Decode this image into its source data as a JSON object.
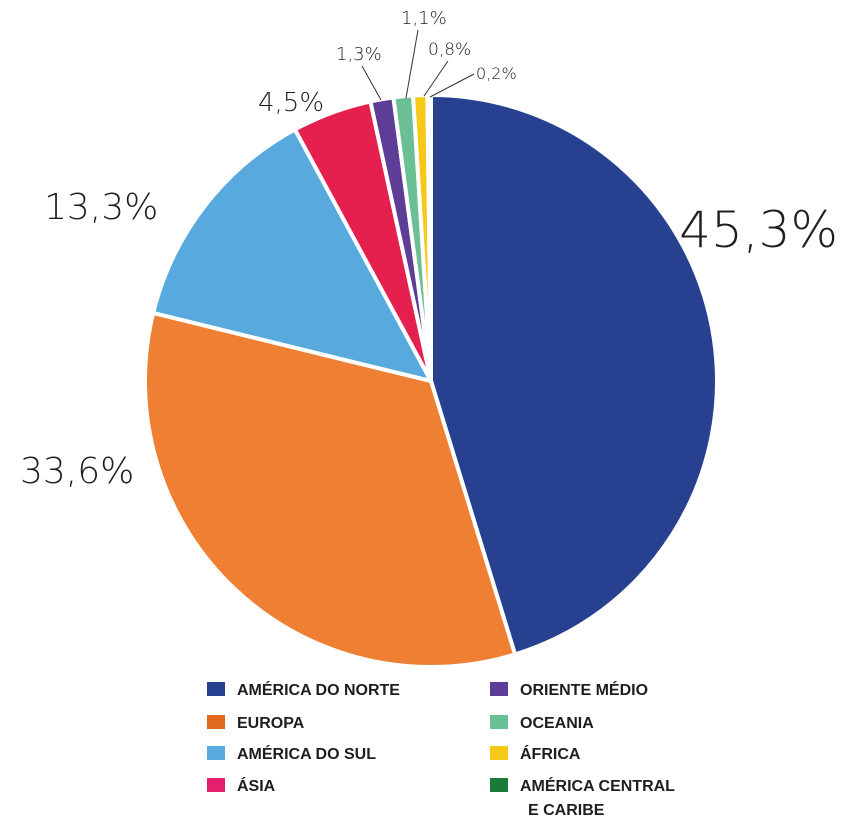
{
  "chart_data": {
    "type": "pie",
    "title": "",
    "slices": [
      {
        "label": "AMÉRICA DO NORTE",
        "value": 45.3,
        "display": "45,3%",
        "color": "#27408f"
      },
      {
        "label": "EUROPA",
        "value": 33.6,
        "display": "33,6%",
        "color": "#ee7f33"
      },
      {
        "label": "AMÉRICA DO SUL",
        "value": 13.3,
        "display": "13,3%",
        "color": "#58aade"
      },
      {
        "label": "ÁSIA",
        "value": 4.5,
        "display": "4,5%",
        "color": "#e51f4e"
      },
      {
        "label": "ORIENTE MÉDIO",
        "value": 1.3,
        "display": "1,3%",
        "color": "#5e3d96"
      },
      {
        "label": "OCEANIA",
        "value": 1.1,
        "display": "1,1%",
        "color": "#6abf95"
      },
      {
        "label": "ÁFRICA",
        "value": 0.8,
        "display": "0,8%",
        "color": "#f6c919"
      },
      {
        "label": "AMÉRICA CENTRAL E CARIBE",
        "value": 0.2,
        "display": "0,2%",
        "color": "#1b7a3a"
      }
    ],
    "legend": {
      "placement": "bottom",
      "columns": [
        [
          {
            "label": "AMÉRICA DO NORTE",
            "color": "#27408f"
          },
          {
            "label": "EUROPA",
            "color": "#e0681f"
          },
          {
            "label": "AMÉRICA DO SUL",
            "color": "#58aade"
          },
          {
            "label": "ÁSIA",
            "color": "#e51f6e"
          }
        ],
        [
          {
            "label": "ORIENTE MÉDIO",
            "color": "#5e3d96"
          },
          {
            "label": "OCEANIA",
            "color": "#6abf95"
          },
          {
            "label": "ÁFRICA",
            "color": "#f6c919"
          },
          {
            "label_lines": [
              "AMÉRICA CENTRAL",
              "E CARIBE"
            ],
            "color": "#1b7a3a"
          }
        ]
      ]
    }
  }
}
